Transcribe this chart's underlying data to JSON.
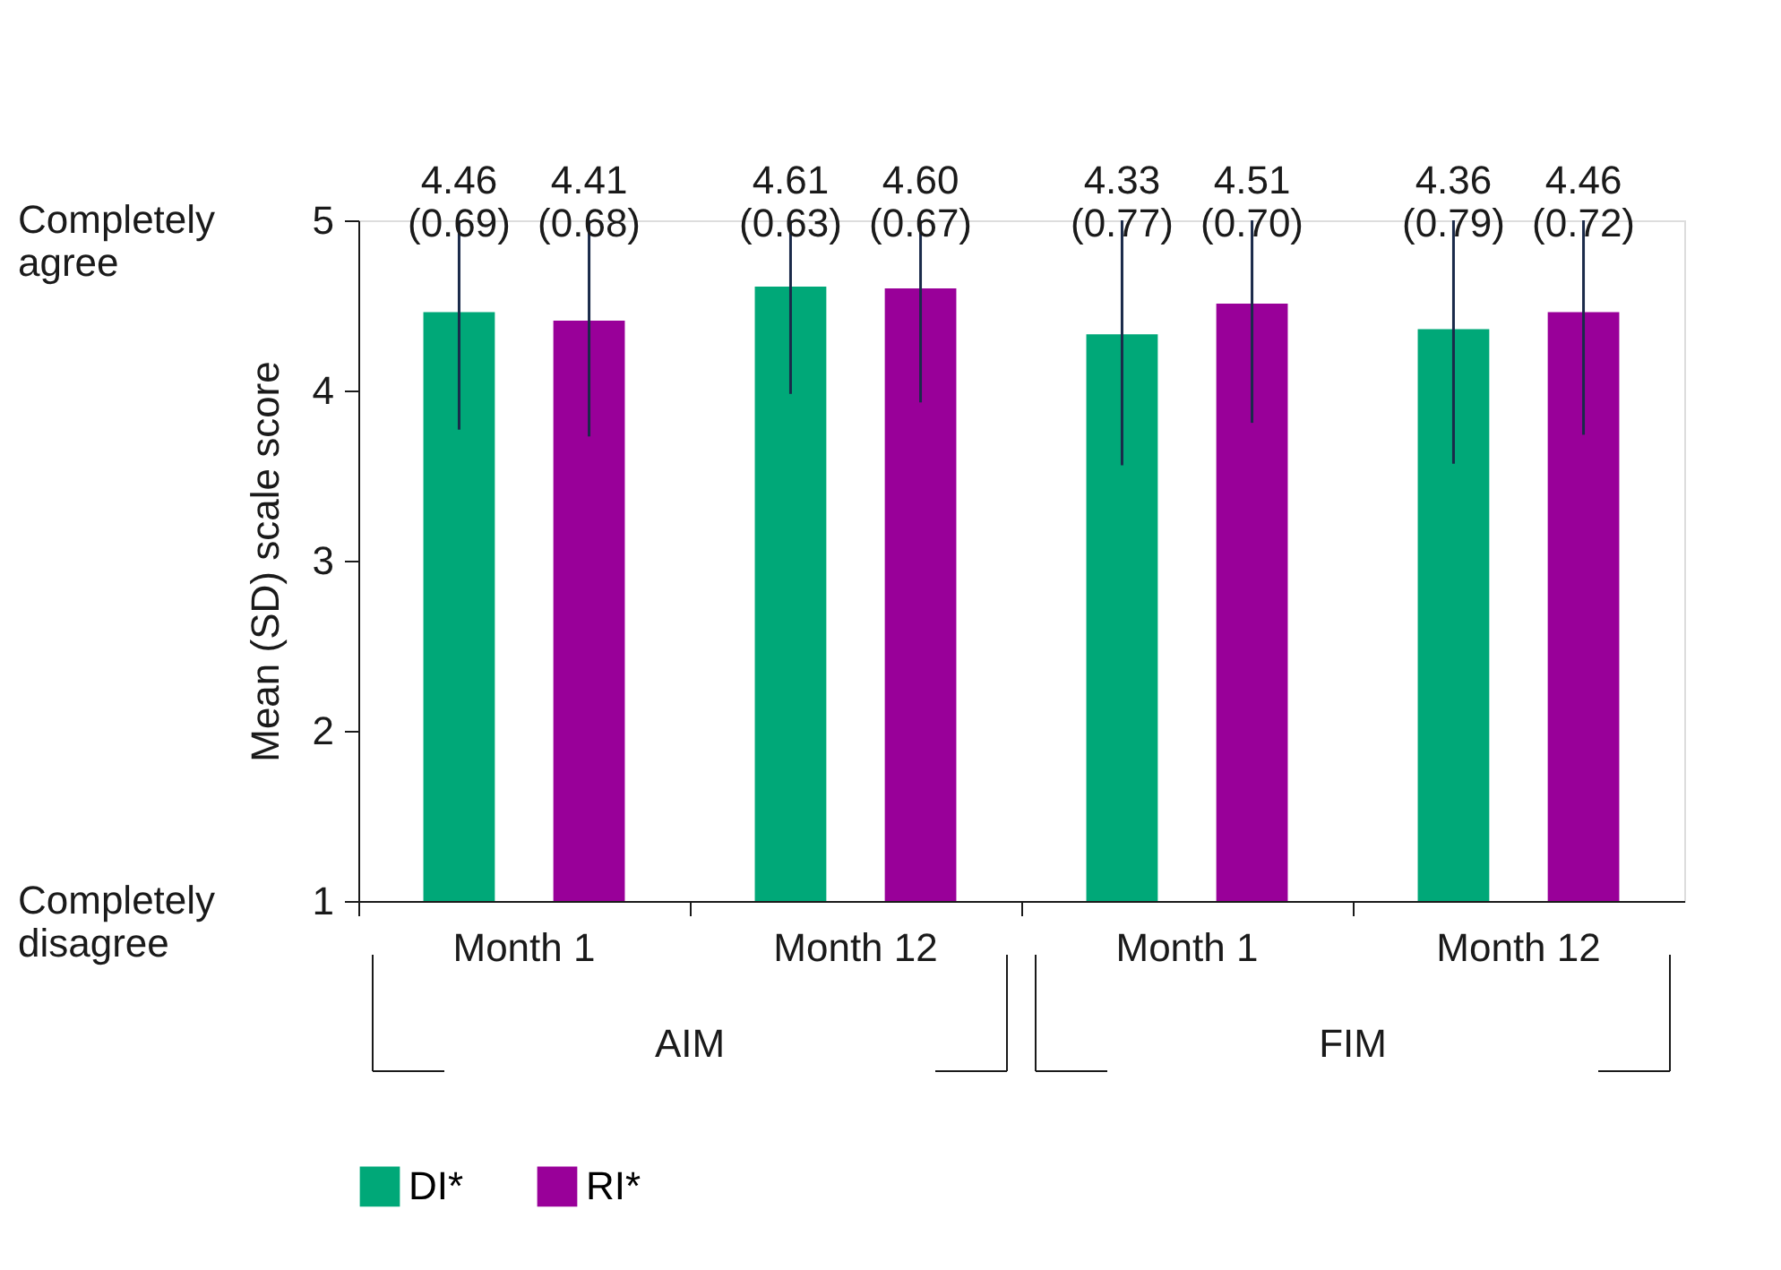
{
  "chart_data": {
    "type": "bar",
    "ylabel": "Mean (SD) scale score",
    "categories": [
      "Month 1",
      "Month 12",
      "Month 1",
      "Month 12"
    ],
    "series": [
      {
        "name": "DI*",
        "color": "#00a878",
        "values": [
          4.46,
          4.61,
          4.33,
          4.36
        ],
        "errors": [
          [
            3.77,
            5
          ],
          [
            3.98,
            5
          ],
          [
            3.56,
            5
          ],
          [
            3.57,
            5
          ]
        ],
        "value_labels": [
          "4.46\n(0.69)",
          "4.61\n(0.63)",
          "4.33\n(0.77)",
          "4.36\n(0.79)"
        ]
      },
      {
        "name": "RI*",
        "color": "#990099",
        "values": [
          4.41,
          4.6,
          4.51,
          4.46
        ],
        "errors": [
          [
            3.73,
            5
          ],
          [
            3.93,
            5
          ],
          [
            3.81,
            5
          ],
          [
            3.74,
            5
          ]
        ],
        "value_labels": [
          "4.41\n(0.68)",
          "4.60\n(0.67)",
          "4.51\n(0.70)",
          "4.46\n(0.72)"
        ]
      }
    ],
    "annotations": [
      "AIM",
      "FIM",
      "Completely agree",
      "Completely disagree"
    ],
    "ylim": [
      1,
      5
    ],
    "yticks": [
      1,
      2,
      3,
      4,
      5
    ],
    "grid": false,
    "legend": "bottom"
  }
}
